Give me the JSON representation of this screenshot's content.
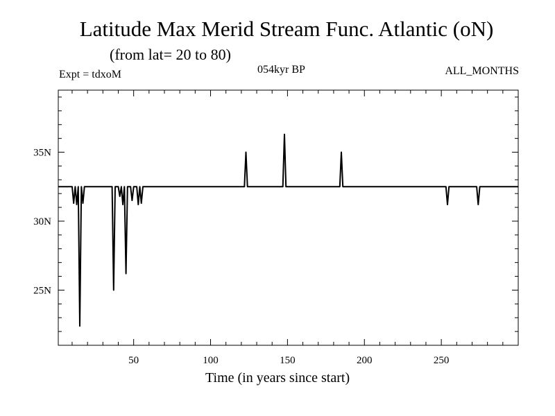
{
  "chart_data": {
    "type": "line",
    "title": "Latitude Max Merid Stream Func. Atlantic (oN)",
    "subtitle": "(from lat= 20 to 80)",
    "experiment": "Expt = tdxoM",
    "period": "054kyr BP",
    "months": "ALL_MONTHS",
    "xlabel": "Time (in years since start)",
    "ylabel": "",
    "xlim": [
      1,
      300
    ],
    "ylim": [
      21,
      39.5
    ],
    "x_ticks": [
      50,
      100,
      150,
      200,
      250
    ],
    "x_tick_labels": [
      "50",
      "100",
      "150",
      "200",
      "250"
    ],
    "y_ticks": [
      25,
      30,
      35
    ],
    "y_tick_labels": [
      "25N",
      "30N",
      "35N"
    ],
    "grid": false,
    "baseline": 32.5,
    "series": [
      {
        "values_xy": [
          [
            1,
            32.5
          ],
          [
            10,
            32.5
          ],
          [
            11,
            31.3
          ],
          [
            12,
            32.5
          ],
          [
            13,
            31.2
          ],
          [
            14,
            32.5
          ],
          [
            15,
            22.4
          ],
          [
            16,
            32.5
          ],
          [
            17,
            31.3
          ],
          [
            18,
            32.5
          ],
          [
            36,
            32.5
          ],
          [
            37,
            25.0
          ],
          [
            38,
            32.5
          ],
          [
            40,
            32.5
          ],
          [
            41,
            31.8
          ],
          [
            42,
            32.5
          ],
          [
            43,
            31.2
          ],
          [
            44,
            32.5
          ],
          [
            45,
            26.2
          ],
          [
            46,
            32.5
          ],
          [
            48,
            32.5
          ],
          [
            49,
            31.5
          ],
          [
            50,
            32.5
          ],
          [
            52,
            32.5
          ],
          [
            53,
            31.2
          ],
          [
            54,
            32.5
          ],
          [
            55,
            31.3
          ],
          [
            56,
            32.5
          ],
          [
            122,
            32.5
          ],
          [
            123,
            35.0
          ],
          [
            124,
            32.5
          ],
          [
            147,
            32.5
          ],
          [
            148,
            36.3
          ],
          [
            149,
            32.5
          ],
          [
            184,
            32.5
          ],
          [
            185,
            35.0
          ],
          [
            186,
            32.5
          ],
          [
            253,
            32.5
          ],
          [
            254,
            31.2
          ],
          [
            255,
            32.5
          ],
          [
            273,
            32.5
          ],
          [
            274,
            31.2
          ],
          [
            275,
            32.5
          ],
          [
            300,
            32.5
          ]
        ]
      }
    ]
  }
}
